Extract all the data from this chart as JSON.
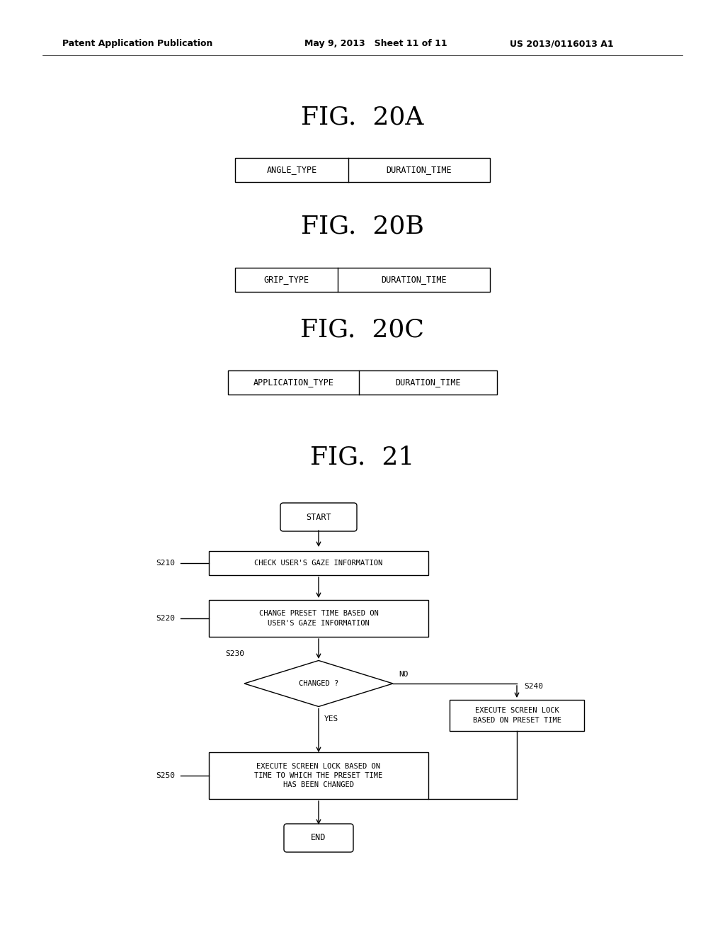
{
  "bg_color": "#ffffff",
  "header_left": "Patent Application Publication",
  "header_mid": "May 9, 2013   Sheet 11 of 11",
  "header_right": "US 2013/0116013 A1",
  "fig20a_title": "FIG.  20A",
  "fig20b_title": "FIG.  20B",
  "fig20c_title": "FIG.  20C",
  "fig21_title": "FIG.  21",
  "title_font_size": 26,
  "table_font_size": 8.0,
  "tables": [
    {
      "left_label": "ANGLE_TYPE",
      "right_label": "DURATION_TIME"
    },
    {
      "left_label": "GRIP_TYPE",
      "right_label": "DURATION_TIME"
    },
    {
      "left_label": "APPLICATION_TYPE",
      "right_label": "DURATION_TIME"
    }
  ],
  "start_label": "START",
  "end_label": "END",
  "s210_label": "CHECK USER'S GAZE INFORMATION",
  "s220_label": "CHANGE PRESET TIME BASED ON\nUSER'S GAZE INFORMATION",
  "s230_label": "CHANGED ?",
  "s240_label": "EXECUTE SCREEN LOCK\nBASED ON PRESET TIME",
  "s250_label": "EXECUTE SCREEN LOCK BASED ON\nTIME TO WHICH THE PRESET TIME\nHAS BEEN CHANGED",
  "no_label": "NO",
  "yes_label": "YES",
  "s210_id": "S210",
  "s220_id": "S220",
  "s230_id": "S230",
  "s240_id": "S240",
  "s250_id": "S250"
}
